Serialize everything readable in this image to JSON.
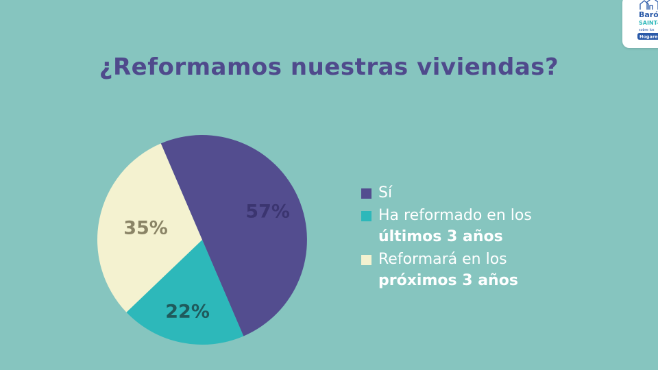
{
  "title": "¿Reformamos nuestras viviendas?",
  "chart_data": {
    "type": "pie",
    "title": "¿Reformamos nuestras viviendas?",
    "slices": [
      {
        "label": "Sí",
        "value": 57,
        "display": "57%",
        "color": "#534d8f",
        "label_color": "#3b3570"
      },
      {
        "label": "Ha reformado en los últimos 3 años",
        "value": 22,
        "display": "22%",
        "color": "#2db8ba",
        "label_color": "#1f5a5c"
      },
      {
        "label": "Reformará en los próximos 3 años",
        "value": 35,
        "display": "35%",
        "color": "#f4f2d0",
        "label_color": "#8a8466"
      }
    ],
    "legend_position": "right"
  },
  "legend": [
    {
      "text": "Sí",
      "strong": "",
      "color": "#534d8f"
    },
    {
      "text": "Ha reformado en los",
      "strong": "últimos 3 años",
      "color": "#2db8ba"
    },
    {
      "text": "Reformará en los",
      "strong": "próximos 3 años",
      "color": "#f4f2d0"
    }
  ],
  "logo": {
    "line1": "Baró",
    "line2": "SAINT-",
    "line3": "sobre los",
    "badge": "Hogare",
    "icon": "house-icon",
    "color": "#2a59a8",
    "accent": "#2db8ba"
  }
}
